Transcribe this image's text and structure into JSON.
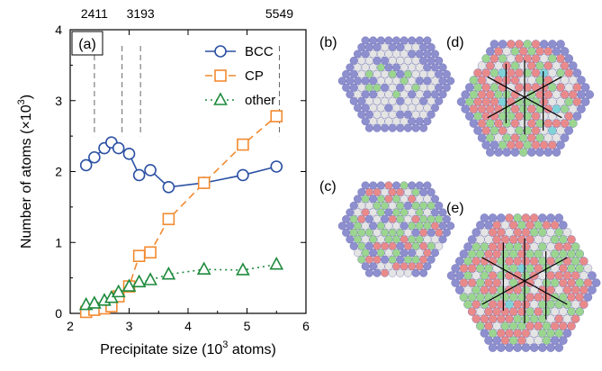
{
  "chart_data": {
    "type": "line",
    "panel_label": "(a)",
    "xlabel": "Precipitate size (10^3 atoms)",
    "xlabel_parts": [
      "Precipitate size (10",
      "3",
      " atoms)"
    ],
    "ylabel": "Number of atoms (×10^3)",
    "ylabel_parts": [
      "Number of atoms (×10",
      "3",
      ")"
    ],
    "xlim": [
      2,
      6
    ],
    "ylim": [
      0,
      4
    ],
    "xticks": [
      2,
      3,
      4,
      5,
      6
    ],
    "yticks": [
      0,
      1,
      2,
      3,
      4
    ],
    "legend_position": "top-right",
    "top_annotations": [
      {
        "x": 2.411,
        "label": "2411"
      },
      {
        "x": 3.193,
        "label": "3193"
      },
      {
        "x": 5.549,
        "label": "5549"
      }
    ],
    "reference_lines_x": [
      2.411,
      2.88,
      3.193,
      5.549
    ],
    "series": [
      {
        "name": "BCC",
        "color": "#2b50a3",
        "marker": "circle",
        "linestyle": "solid",
        "x": [
          2.27,
          2.41,
          2.58,
          2.7,
          2.82,
          3.0,
          3.17,
          3.36,
          3.67,
          4.27,
          4.93,
          5.5
        ],
        "y": [
          2.09,
          2.2,
          2.33,
          2.41,
          2.33,
          2.25,
          1.95,
          2.02,
          1.78,
          1.84,
          1.95,
          2.07
        ]
      },
      {
        "name": "CP",
        "color": "#f28a30",
        "marker": "square",
        "linestyle": "dashed",
        "x": [
          2.27,
          2.41,
          2.58,
          2.7,
          2.82,
          3.0,
          3.17,
          3.36,
          3.67,
          4.27,
          4.93,
          5.5
        ],
        "y": [
          0.02,
          0.05,
          0.07,
          0.1,
          0.24,
          0.38,
          0.81,
          0.86,
          1.33,
          1.84,
          2.38,
          2.78
        ]
      },
      {
        "name": "other",
        "color": "#1e8a3c",
        "marker": "triangle",
        "linestyle": "dotted",
        "x": [
          2.27,
          2.41,
          2.58,
          2.7,
          2.82,
          3.0,
          3.17,
          3.36,
          3.67,
          4.27,
          4.93,
          5.5
        ],
        "y": [
          0.12,
          0.14,
          0.18,
          0.22,
          0.3,
          0.38,
          0.44,
          0.47,
          0.55,
          0.62,
          0.61,
          0.69
        ]
      }
    ]
  },
  "snapshots": [
    {
      "label": "(b)",
      "description": "hexagon-snapshot-b"
    },
    {
      "label": "(c)",
      "description": "hexagon-snapshot-c"
    },
    {
      "label": "(d)",
      "description": "hexagon-snapshot-d"
    },
    {
      "label": "(e)",
      "description": "hexagon-snapshot-e"
    }
  ],
  "atom_colors": {
    "bcc_matrix": "#8d8fcf",
    "bcc_light": "#e4e4e4",
    "cp_red": "#e98a8a",
    "cp_green": "#9bd58f",
    "other_grey": "#cfcfcf",
    "cyan": "#7fd3d8"
  }
}
